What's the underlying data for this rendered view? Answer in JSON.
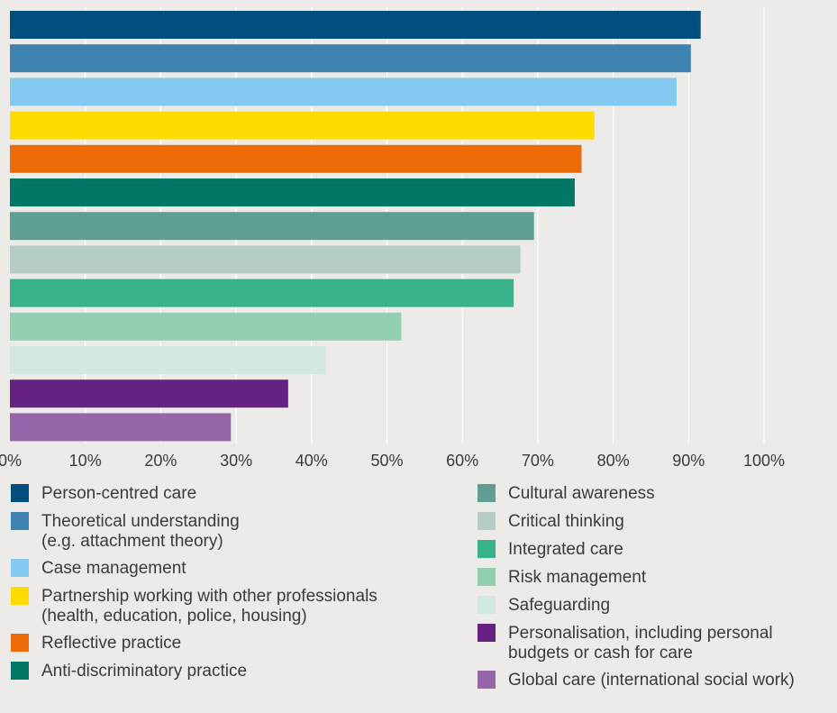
{
  "chart_data": {
    "type": "bar",
    "orientation": "horizontal",
    "xlim": [
      0,
      100
    ],
    "grid": true,
    "x_ticks": [
      "0%",
      "10%",
      "20%",
      "30%",
      "40%",
      "50%",
      "60%",
      "70%",
      "80%",
      "90%",
      "100%"
    ],
    "unit": "%",
    "legend_position": "bottom",
    "series": [
      {
        "name": "Person-centred care",
        "value": 91.6,
        "color": "#004f7f"
      },
      {
        "name": "Theoretical understanding\n(e.g. attachment theory)",
        "value": 90.3,
        "color": "#3d82b0"
      },
      {
        "name": "Case management",
        "value": 88.4,
        "color": "#84c9f0"
      },
      {
        "name": "Partnership working with other professionals\n(health, education, police, housing)",
        "value": 77.5,
        "color": "#ffdc00"
      },
      {
        "name": "Reflective practice",
        "value": 75.8,
        "color": "#ee6b0a"
      },
      {
        "name": "Anti-discriminatory practice",
        "value": 74.9,
        "color": "#007765"
      },
      {
        "name": "Cultural awareness",
        "value": 69.5,
        "color": "#5f9f93"
      },
      {
        "name": "Critical thinking",
        "value": 67.7,
        "color": "#b6ccc6"
      },
      {
        "name": "Integrated care",
        "value": 66.8,
        "color": "#38b28a"
      },
      {
        "name": "Risk management",
        "value": 51.9,
        "color": "#93cfb1"
      },
      {
        "name": "Safeguarding",
        "value": 41.9,
        "color": "#d3e8df"
      },
      {
        "name": "Personalisation, including personal\nbudgets or cash for care",
        "value": 36.9,
        "color": "#662282"
      },
      {
        "name": "Global care (international social work)",
        "value": 29.3,
        "color": "#9566a9"
      }
    ]
  }
}
